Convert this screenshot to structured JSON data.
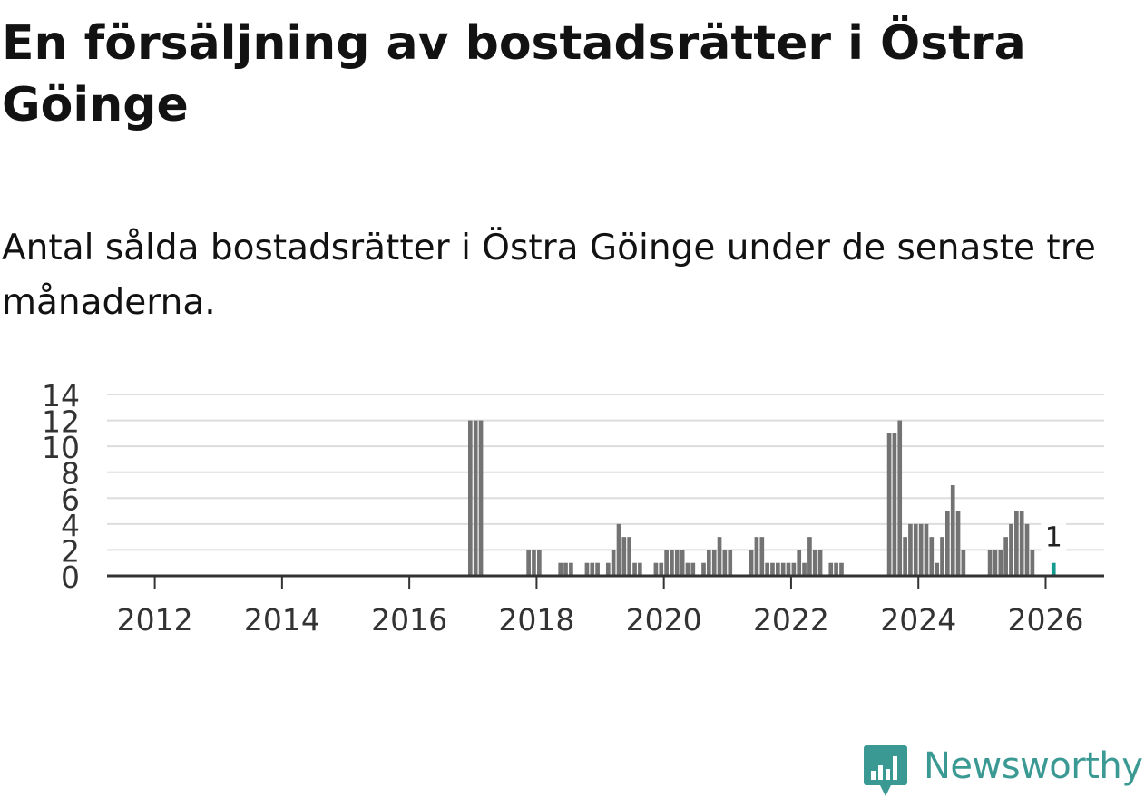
{
  "title": "En försäljning av bostadsrätter i Östra Göinge",
  "subtitle": "Antal sålda bostadsrätter i Östra Göinge under de senaste tre månaderna.",
  "brand": {
    "name": "Newsworthy",
    "color": "#3a9a93",
    "icon": "bar-chart-logo-icon"
  },
  "colors": {
    "bar": "#737373",
    "highlight": "#169b91",
    "grid": "#dddddd",
    "axis": "#333333"
  },
  "chart_data": {
    "type": "bar",
    "title": "En försäljning av bostadsrätter i Östra Göinge",
    "ylabel": "",
    "xlabel": "",
    "ylim": [
      0,
      14
    ],
    "xlim": [
      2011.25,
      2026.92
    ],
    "y_ticks": [
      0,
      2,
      4,
      6,
      8,
      10,
      12,
      14
    ],
    "x_ticks": [
      2012,
      2014,
      2016,
      2018,
      2020,
      2022,
      2024,
      2026
    ],
    "grid": true,
    "highlight_label": "1",
    "series": [
      {
        "name": "Antal sålda bostadsrätter",
        "x": [
          2016.958,
          2017.042,
          2017.125,
          2017.875,
          2017.958,
          2018.042,
          2018.375,
          2018.458,
          2018.542,
          2018.792,
          2018.875,
          2018.958,
          2019.125,
          2019.208,
          2019.292,
          2019.375,
          2019.458,
          2019.542,
          2019.625,
          2019.875,
          2019.958,
          2020.042,
          2020.125,
          2020.208,
          2020.292,
          2020.375,
          2020.458,
          2020.625,
          2020.708,
          2020.792,
          2020.875,
          2020.958,
          2021.042,
          2021.375,
          2021.458,
          2021.542,
          2021.625,
          2021.708,
          2021.792,
          2021.875,
          2021.958,
          2022.042,
          2022.125,
          2022.208,
          2022.292,
          2022.375,
          2022.458,
          2022.625,
          2022.708,
          2022.792,
          2023.542,
          2023.625,
          2023.708,
          2023.792,
          2023.875,
          2023.958,
          2024.042,
          2024.125,
          2024.208,
          2024.292,
          2024.375,
          2024.458,
          2024.542,
          2024.625,
          2024.708,
          2025.125,
          2025.208,
          2025.292,
          2025.375,
          2025.458,
          2025.542,
          2025.625,
          2025.708,
          2025.792
        ],
        "values": [
          12,
          12,
          12,
          2,
          2,
          2,
          1,
          1,
          1,
          1,
          1,
          1,
          1,
          2,
          4,
          3,
          3,
          1,
          1,
          1,
          1,
          2,
          2,
          2,
          2,
          1,
          1,
          1,
          2,
          2,
          3,
          2,
          2,
          2,
          3,
          3,
          1,
          1,
          1,
          1,
          1,
          1,
          2,
          1,
          3,
          2,
          2,
          1,
          1,
          1,
          11,
          11,
          12,
          3,
          4,
          4,
          4,
          4,
          3,
          1,
          3,
          5,
          7,
          5,
          2,
          2,
          2,
          2,
          3,
          4,
          5,
          5,
          4,
          2
        ]
      },
      {
        "name": "Senaste tre månaderna",
        "x": [
          2026.125
        ],
        "values": [
          1
        ]
      }
    ]
  }
}
